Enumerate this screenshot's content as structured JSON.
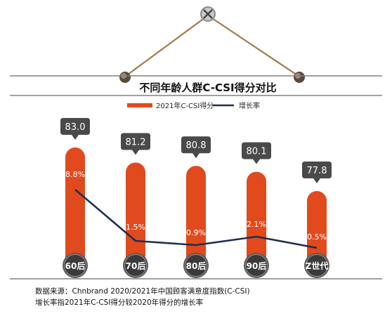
{
  "title": "不同年龄人群C-CSI得分对比",
  "legend": {
    "bar_label": "2021年C-CSI得分",
    "line_label": "增长率"
  },
  "colors": {
    "bar": "#e14a1d",
    "line": "#1e2f4f",
    "callout": "#4a4a4a",
    "rope": "#a37a4e",
    "rule": "#808080"
  },
  "chart_data": {
    "type": "bar",
    "title": "不同年龄人群C-CSI得分对比",
    "categories": [
      "60后",
      "70后",
      "80后",
      "90后",
      "Z世代"
    ],
    "series": [
      {
        "name": "2021年C-CSI得分",
        "type": "bar",
        "values": [
          83.0,
          81.2,
          80.8,
          80.1,
          77.8
        ],
        "labels": [
          "83.0",
          "81.2",
          "80.8",
          "80.1",
          "77.8"
        ]
      },
      {
        "name": "增长率",
        "type": "line",
        "values": [
          8.8,
          1.5,
          0.9,
          2.1,
          0.5
        ],
        "labels": [
          "8.8%",
          "1.5%",
          "0.9%",
          "2.1%",
          "0.5%"
        ]
      }
    ],
    "legend_position": "top"
  },
  "footer": {
    "line1": "数据来源：Chnbrand 2020/2021年中国顾客满意度指数(C-CSI)",
    "line2": "增长率指2021年C-CSI得分较2020年得分的增长率"
  }
}
